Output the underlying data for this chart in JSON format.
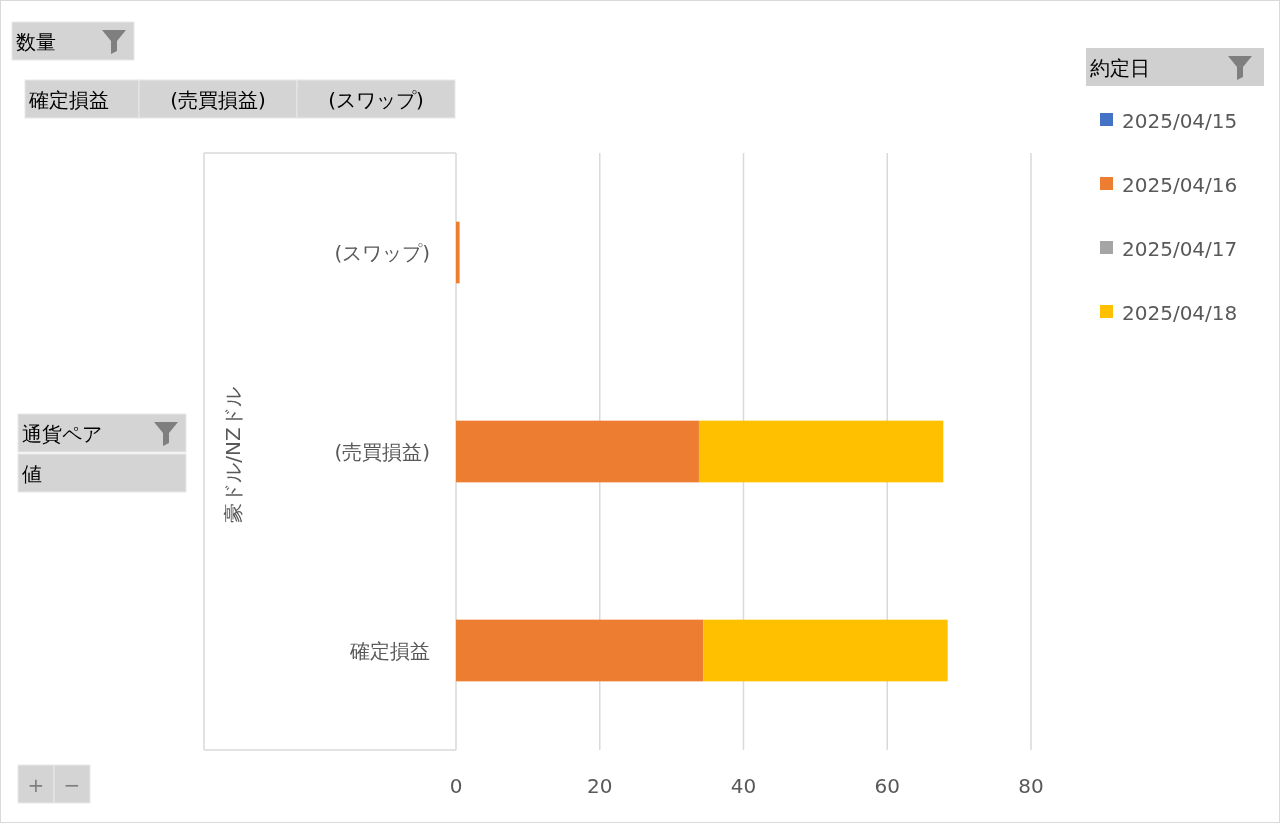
{
  "chart_data": {
    "type": "bar",
    "orientation": "horizontal",
    "stacked": true,
    "categories": [
      "(スワップ)",
      "(売買損益)",
      "確定損益"
    ],
    "ylabel": "豪ドル/NZドル",
    "legend_title": "約定日",
    "legend": "right",
    "series": [
      {
        "name": "2025/04/15",
        "color": "#4472c4",
        "values": [
          null,
          null,
          null
        ]
      },
      {
        "name": "2025/04/16",
        "color": "#ed7d31",
        "values": [
          0.5,
          33.8,
          34.4
        ]
      },
      {
        "name": "2025/04/17",
        "color": "#a5a5a5",
        "values": [
          null,
          null,
          null
        ]
      },
      {
        "name": "2025/04/18",
        "color": "#ffc000",
        "values": [
          null,
          34.0,
          34.0
        ]
      }
    ],
    "xlim": [
      0,
      80
    ],
    "xticks": [
      0,
      20,
      40,
      60,
      80
    ],
    "grid": "x",
    "annotations": [
      "数量",
      "確定損益",
      "(売買損益)",
      "(スワップ)",
      "通貨ペア",
      "値",
      "+",
      "−"
    ]
  }
}
